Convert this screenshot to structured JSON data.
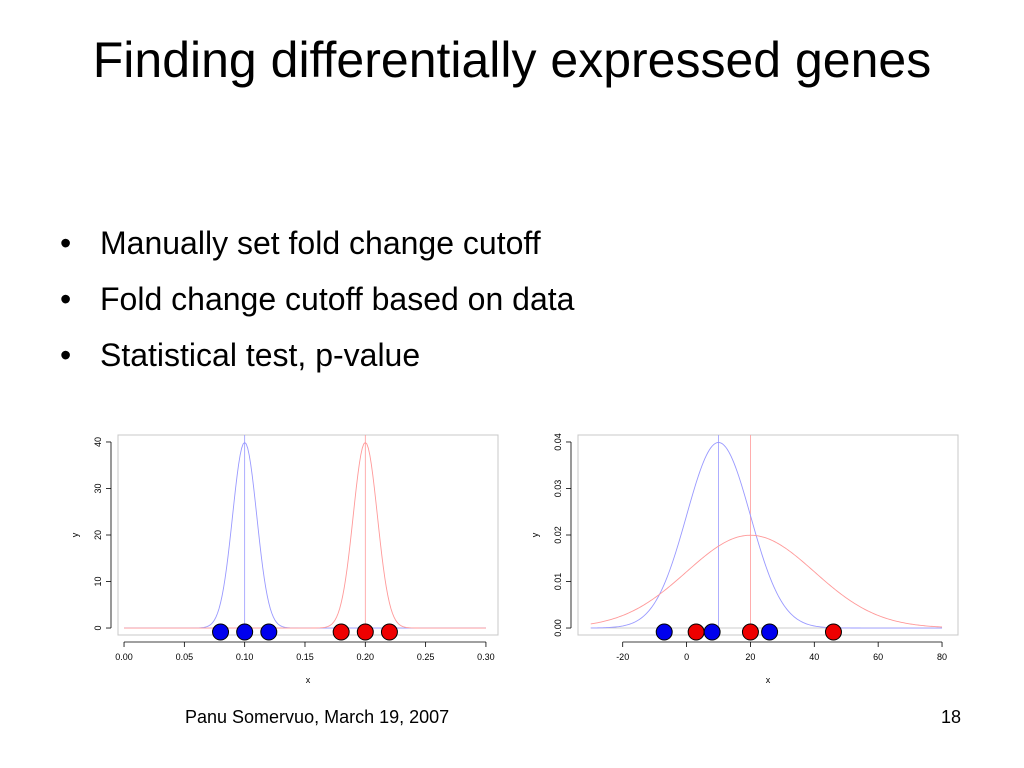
{
  "slide": {
    "title": "Finding differentially expressed genes",
    "bullets": [
      "Manually set fold change cutoff",
      "Fold change cutoff based on data",
      "Statistical test, p-value"
    ],
    "bullet_symbol": "•",
    "footer_author": "Panu Somervuo, March 19, 2007",
    "page_number": "18"
  },
  "colors": {
    "blue": "#0000ee",
    "red": "#ee0000",
    "curve_blue": "#9999ff",
    "curve_red": "#ff9999",
    "axis": "#000000",
    "frame": "#c8c8c8"
  },
  "chart_data": [
    {
      "type": "line",
      "xlabel": "x",
      "ylabel": "y",
      "xlim": [
        -0.005,
        0.31
      ],
      "ylim": [
        -1.5,
        41.5
      ],
      "xticks": [
        0.0,
        0.05,
        0.1,
        0.15,
        0.2,
        0.25,
        0.3
      ],
      "xtick_labels": [
        "0.00",
        "0.05",
        "0.10",
        "0.15",
        "0.20",
        "0.25",
        "0.30"
      ],
      "yticks": [
        0,
        10,
        20,
        30,
        40
      ],
      "ytick_labels": [
        "0",
        "10",
        "20",
        "30",
        "40"
      ],
      "curve_range": [
        0.0,
        0.3
      ],
      "series": [
        {
          "color_key": "curve_blue",
          "mean": 0.1,
          "sd": 0.01
        },
        {
          "color_key": "curve_red",
          "mean": 0.2,
          "sd": 0.01
        }
      ],
      "vlines": [
        {
          "x": 0.1,
          "color_key": "curve_blue"
        },
        {
          "x": 0.2,
          "color_key": "curve_red"
        }
      ],
      "points": [
        {
          "x": 0.08,
          "y": 0,
          "color_key": "blue"
        },
        {
          "x": 0.1,
          "y": 0,
          "color_key": "blue"
        },
        {
          "x": 0.12,
          "y": 0,
          "color_key": "blue"
        },
        {
          "x": 0.18,
          "y": 0,
          "color_key": "red"
        },
        {
          "x": 0.2,
          "y": 0,
          "color_key": "red"
        },
        {
          "x": 0.22,
          "y": 0,
          "color_key": "red"
        }
      ]
    },
    {
      "type": "line",
      "xlabel": "x",
      "ylabel": "y",
      "xlim": [
        -34,
        85
      ],
      "ylim": [
        -0.0015,
        0.0415
      ],
      "xticks": [
        -20,
        0,
        20,
        40,
        60,
        80
      ],
      "xtick_labels": [
        "-20",
        "0",
        "20",
        "40",
        "60",
        "80"
      ],
      "yticks": [
        0.0,
        0.01,
        0.02,
        0.03,
        0.04
      ],
      "ytick_labels": [
        "0.00",
        "0.01",
        "0.02",
        "0.03",
        "0.04"
      ],
      "curve_range": [
        -30,
        80
      ],
      "series": [
        {
          "color_key": "curve_blue",
          "mean": 10,
          "sd": 10
        },
        {
          "color_key": "curve_red",
          "mean": 20,
          "sd": 20
        }
      ],
      "vlines": [
        {
          "x": 10,
          "color_key": "curve_blue"
        },
        {
          "x": 20,
          "color_key": "curve_red"
        }
      ],
      "points": [
        {
          "x": -7,
          "y": 0,
          "color_key": "blue"
        },
        {
          "x": 3,
          "y": 0,
          "color_key": "red"
        },
        {
          "x": 8,
          "y": 0,
          "color_key": "blue"
        },
        {
          "x": 20,
          "y": 0,
          "color_key": "red"
        },
        {
          "x": 26,
          "y": 0,
          "color_key": "blue"
        },
        {
          "x": 46,
          "y": 0,
          "color_key": "red"
        }
      ]
    }
  ]
}
